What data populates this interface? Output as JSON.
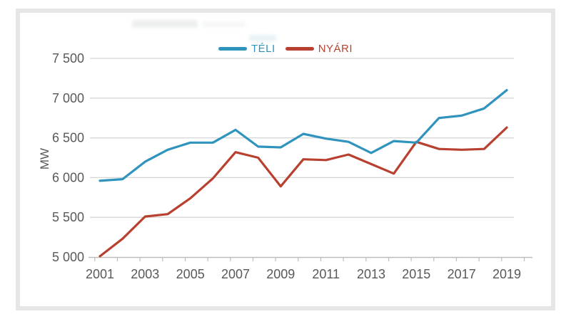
{
  "axis": {
    "label_color": "#595959",
    "grid_color": "#d6d6d6",
    "axis_color": "#bdbdbd"
  },
  "card": {
    "border_color": "#e6e6e6",
    "background": "#ffffff"
  },
  "chart_data": {
    "type": "line",
    "title": "",
    "ylabel": "MW",
    "xlabel": "",
    "grid": "horizontal",
    "legend_position": "top-center",
    "ylim": [
      5000,
      7500
    ],
    "x": [
      2001,
      2002,
      2003,
      2004,
      2005,
      2006,
      2007,
      2008,
      2009,
      2010,
      2011,
      2012,
      2013,
      2014,
      2015,
      2016,
      2017,
      2018,
      2019
    ],
    "x_tick_labels": [
      "2001",
      "2003",
      "2005",
      "2007",
      "2009",
      "2011",
      "2013",
      "2015",
      "2017",
      "2019"
    ],
    "y_ticks": [
      5000,
      5500,
      6000,
      6500,
      7000,
      7500
    ],
    "y_tick_labels": [
      "5 000",
      "5 500",
      "6 000",
      "6 500",
      "7 000",
      "7 500"
    ],
    "series": [
      {
        "name": "TÉLI",
        "color": "#2e93bd",
        "values": [
          5960,
          5980,
          6200,
          6350,
          6440,
          6440,
          6600,
          6390,
          6380,
          6550,
          6490,
          6450,
          6310,
          6460,
          6440,
          6750,
          6780,
          6870,
          7100
        ]
      },
      {
        "name": "NYÁRI",
        "color": "#b8402f",
        "values": [
          5010,
          5230,
          5510,
          5540,
          5740,
          5990,
          6320,
          6250,
          5890,
          6230,
          6220,
          6290,
          6170,
          6050,
          6450,
          6360,
          6350,
          6360,
          6630
        ]
      }
    ]
  }
}
